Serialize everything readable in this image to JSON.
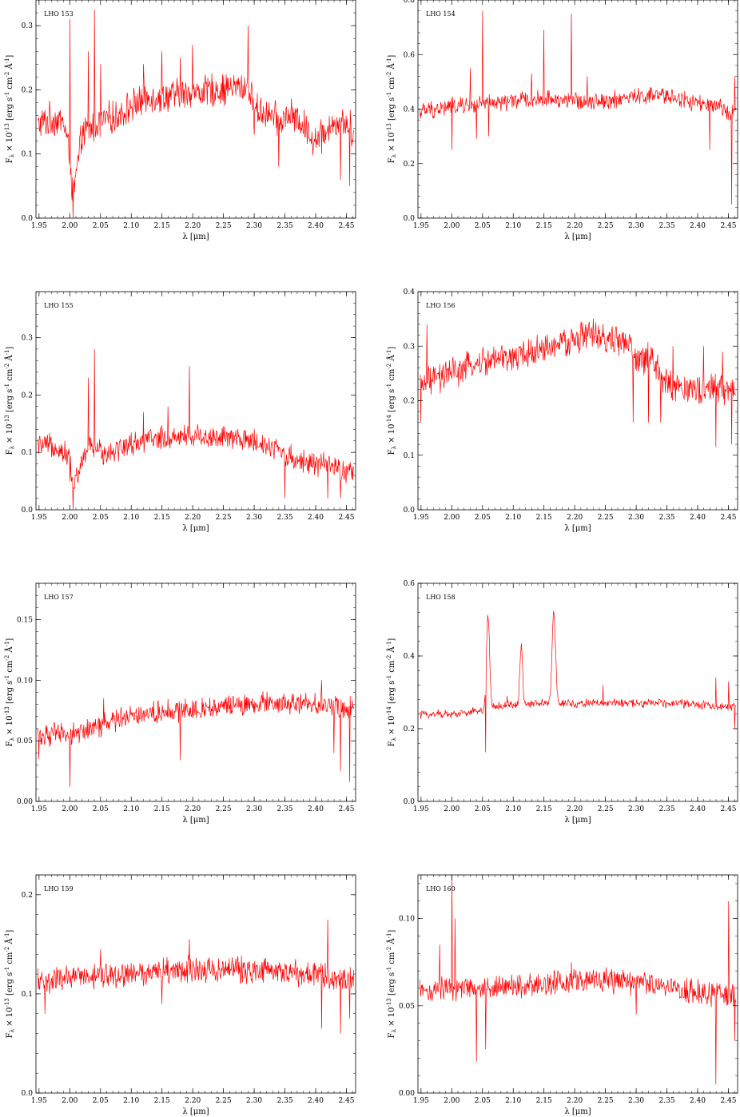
{
  "figure": {
    "line_color": "#ff0000",
    "axis_color": "#000000",
    "background": "#ffffff"
  },
  "chart_data": [
    {
      "type": "line",
      "panel_label": "LHO 153",
      "xlabel": "λ [μm]",
      "ylabel": "F_λ × 10^-13 [erg s^-1 cm^-2 Å^-1]",
      "y_exponent": "-13",
      "xlim": [
        1.945,
        2.465
      ],
      "ylim": [
        0.0,
        0.34
      ],
      "xticks": [
        "1.95",
        "2.00",
        "2.05",
        "2.10",
        "2.15",
        "2.20",
        "2.25",
        "2.30",
        "2.35",
        "2.40",
        "2.45"
      ],
      "yticks": [
        "0.0",
        "0.1",
        "0.2",
        "0.3"
      ],
      "ytick_values": [
        0.0,
        0.1,
        0.2,
        0.3
      ],
      "series": [
        {
          "x": [
            1.95,
            1.97,
            1.99,
            2.0,
            2.005,
            2.02,
            2.05,
            2.08,
            2.1,
            2.13,
            2.16,
            2.2,
            2.24,
            2.28,
            2.29,
            2.3,
            2.32,
            2.34,
            2.36,
            2.38,
            2.4,
            2.42,
            2.44,
            2.46
          ],
          "y": [
            0.145,
            0.155,
            0.15,
            0.1,
            0.03,
            0.13,
            0.15,
            0.16,
            0.175,
            0.19,
            0.19,
            0.195,
            0.2,
            0.205,
            0.205,
            0.17,
            0.165,
            0.15,
            0.16,
            0.145,
            0.12,
            0.145,
            0.15,
            0.14
          ],
          "noise": 0.022,
          "spikes": [
            [
              2.0,
              0.31
            ],
            [
              2.04,
              0.325
            ],
            [
              2.03,
              0.26
            ],
            [
              2.05,
              0.24
            ],
            [
              2.12,
              0.24
            ],
            [
              2.15,
              0.26
            ],
            [
              2.18,
              0.25
            ],
            [
              2.2,
              0.27
            ],
            [
              2.29,
              0.3
            ],
            [
              2.455,
              0.26
            ]
          ],
          "dips": [
            [
              2.005,
              0.0
            ],
            [
              2.3,
              0.13
            ],
            [
              2.34,
              0.08
            ],
            [
              2.41,
              0.1
            ],
            [
              2.44,
              0.06
            ],
            [
              2.455,
              0.05
            ]
          ]
        }
      ]
    },
    {
      "type": "line",
      "panel_label": "LHO 154",
      "xlabel": "λ [μm]",
      "ylabel": "F_λ × 10^-13 [erg s^-1 cm^-2 Å^-1]",
      "y_exponent": "-13",
      "xlim": [
        1.945,
        2.465
      ],
      "ylim": [
        0.0,
        0.8
      ],
      "xticks": [
        "1.95",
        "2.00",
        "2.05",
        "2.10",
        "2.15",
        "2.20",
        "2.25",
        "2.30",
        "2.35",
        "2.40",
        "2.45"
      ],
      "yticks": [
        "0.0",
        "0.2",
        "0.4",
        "0.6",
        "0.8"
      ],
      "ytick_values": [
        0.0,
        0.2,
        0.4,
        0.6,
        0.8
      ],
      "series": [
        {
          "x": [
            1.95,
            2.0,
            2.05,
            2.1,
            2.15,
            2.2,
            2.25,
            2.3,
            2.35,
            2.4,
            2.46
          ],
          "y": [
            0.39,
            0.41,
            0.415,
            0.43,
            0.44,
            0.43,
            0.43,
            0.445,
            0.45,
            0.42,
            0.39
          ],
          "noise": 0.028,
          "spikes": [
            [
              2.0,
              0.52
            ],
            [
              2.04,
              0.77
            ],
            [
              2.05,
              0.76
            ],
            [
              2.06,
              0.59
            ],
            [
              2.15,
              0.69
            ],
            [
              2.195,
              0.75
            ],
            [
              2.03,
              0.55
            ],
            [
              2.13,
              0.53
            ],
            [
              2.22,
              0.52
            ],
            [
              2.46,
              0.52
            ]
          ],
          "dips": [
            [
              2.0,
              0.25
            ],
            [
              2.04,
              0.29
            ],
            [
              2.455,
              0.05
            ],
            [
              2.42,
              0.25
            ],
            [
              2.06,
              0.3
            ]
          ]
        }
      ]
    },
    {
      "type": "line",
      "panel_label": "LHO 155",
      "xlabel": "λ [μm]",
      "ylabel": "F_λ × 10^-13 [erg s^-1 cm^-2 Å^-1]",
      "y_exponent": "-13",
      "xlim": [
        1.945,
        2.465
      ],
      "ylim": [
        0.0,
        0.38
      ],
      "xticks": [
        "1.95",
        "2.00",
        "2.05",
        "2.10",
        "2.15",
        "2.20",
        "2.25",
        "2.30",
        "2.35",
        "2.40",
        "2.45"
      ],
      "yticks": [
        "0.0",
        "0.1",
        "0.2",
        "0.3"
      ],
      "ytick_values": [
        0.0,
        0.1,
        0.2,
        0.3
      ],
      "series": [
        {
          "x": [
            1.95,
            1.98,
            2.0,
            2.005,
            2.03,
            2.06,
            2.1,
            2.15,
            2.2,
            2.25,
            2.3,
            2.33,
            2.36,
            2.4,
            2.44,
            2.46
          ],
          "y": [
            0.11,
            0.11,
            0.09,
            0.04,
            0.11,
            0.1,
            0.115,
            0.125,
            0.13,
            0.125,
            0.12,
            0.11,
            0.09,
            0.08,
            0.07,
            0.06
          ],
          "noise": 0.018,
          "spikes": [
            [
              2.0,
              0.38
            ],
            [
              2.04,
              0.28
            ],
            [
              2.03,
              0.23
            ],
            [
              2.195,
              0.25
            ],
            [
              2.12,
              0.17
            ],
            [
              2.16,
              0.18
            ]
          ],
          "dips": [
            [
              2.005,
              0.0
            ],
            [
              2.35,
              0.02
            ],
            [
              2.42,
              0.02
            ],
            [
              2.44,
              0.02
            ],
            [
              2.0,
              0.05
            ]
          ]
        }
      ]
    },
    {
      "type": "line",
      "panel_label": "LHO 156",
      "xlabel": "λ [μm]",
      "ylabel": "F_λ × 10^-14 [erg s^-1 cm^-2 Å^-1]",
      "y_exponent": "-14",
      "xlim": [
        1.945,
        2.465
      ],
      "ylim": [
        0.0,
        0.4
      ],
      "xticks": [
        "1.95",
        "2.00",
        "2.05",
        "2.10",
        "2.15",
        "2.20",
        "2.25",
        "2.30",
        "2.35",
        "2.40",
        "2.45"
      ],
      "yticks": [
        "0.0",
        "0.1",
        "0.2",
        "0.3",
        "0.4"
      ],
      "ytick_values": [
        0.0,
        0.1,
        0.2,
        0.3,
        0.4
      ],
      "series": [
        {
          "x": [
            1.95,
            2.0,
            2.05,
            2.1,
            2.15,
            2.2,
            2.22,
            2.25,
            2.28,
            2.29,
            2.3,
            2.32,
            2.35,
            2.4,
            2.46
          ],
          "y": [
            0.23,
            0.25,
            0.27,
            0.28,
            0.295,
            0.31,
            0.325,
            0.31,
            0.31,
            0.3,
            0.27,
            0.28,
            0.23,
            0.22,
            0.22
          ],
          "noise": 0.024,
          "spikes": [
            [
              1.96,
              0.34
            ],
            [
              2.21,
              0.345
            ],
            [
              2.24,
              0.33
            ],
            [
              2.36,
              0.3
            ],
            [
              2.41,
              0.3
            ],
            [
              2.44,
              0.29
            ]
          ],
          "dips": [
            [
              2.295,
              0.16
            ],
            [
              2.32,
              0.16
            ],
            [
              2.34,
              0.16
            ],
            [
              2.43,
              0.115
            ],
            [
              2.455,
              0.12
            ],
            [
              1.95,
              0.16
            ]
          ]
        }
      ]
    },
    {
      "type": "line",
      "panel_label": "LHO 157",
      "xlabel": "λ [μm]",
      "ylabel": "F_λ × 10^-13 [erg s^-1 cm^-2 Å^-1]",
      "y_exponent": "-13",
      "xlim": [
        1.945,
        2.465
      ],
      "ylim": [
        0.0,
        0.18
      ],
      "xticks": [
        "1.95",
        "2.00",
        "2.05",
        "2.10",
        "2.15",
        "2.20",
        "2.25",
        "2.30",
        "2.35",
        "2.40",
        "2.45"
      ],
      "yticks": [
        "0.00",
        "0.05",
        "0.10",
        "0.15"
      ],
      "ytick_values": [
        0.0,
        0.05,
        0.1,
        0.15
      ],
      "series": [
        {
          "x": [
            1.95,
            2.0,
            2.05,
            2.08,
            2.1,
            2.15,
            2.2,
            2.25,
            2.3,
            2.35,
            2.4,
            2.46
          ],
          "y": [
            0.055,
            0.055,
            0.062,
            0.068,
            0.072,
            0.074,
            0.076,
            0.078,
            0.08,
            0.081,
            0.08,
            0.078
          ],
          "noise": 0.008,
          "spikes": [
            [
              2.055,
              0.085
            ],
            [
              2.455,
              0.18
            ],
            [
              2.43,
              0.12
            ],
            [
              2.44,
              0.13
            ],
            [
              2.41,
              0.1
            ]
          ],
          "dips": [
            [
              2.0,
              0.012
            ],
            [
              2.18,
              0.034
            ],
            [
              2.455,
              0.016
            ],
            [
              2.44,
              0.025
            ],
            [
              2.43,
              0.04
            ],
            [
              1.95,
              0.035
            ]
          ]
        }
      ]
    },
    {
      "type": "line",
      "panel_label": "LHO 158",
      "xlabel": "λ [μm]",
      "ylabel": "F_λ × 10^-14 [erg s^-1 cm^-2 Å^-1]",
      "y_exponent": "-14",
      "xlim": [
        1.945,
        2.465
      ],
      "ylim": [
        0.0,
        0.6
      ],
      "xticks": [
        "1.95",
        "2.00",
        "2.05",
        "2.10",
        "2.15",
        "2.20",
        "2.25",
        "2.30",
        "2.35",
        "2.40",
        "2.45"
      ],
      "yticks": [
        "0.0",
        "0.2",
        "0.4",
        "0.6"
      ],
      "ytick_values": [
        0.0,
        0.2,
        0.4,
        0.6
      ],
      "series": [
        {
          "x": [
            1.95,
            2.0,
            2.05,
            2.06,
            2.1,
            2.15,
            2.2,
            2.25,
            2.3,
            2.35,
            2.4,
            2.46
          ],
          "y": [
            0.24,
            0.24,
            0.25,
            0.26,
            0.265,
            0.27,
            0.27,
            0.27,
            0.27,
            0.27,
            0.265,
            0.26
          ],
          "noise": 0.01,
          "peaks": [
            [
              2.059,
              0.51,
              0.0025
            ],
            [
              2.113,
              0.43,
              0.0022
            ],
            [
              2.166,
              0.52,
              0.0028
            ]
          ],
          "spikes": [
            [
              2.246,
              0.32
            ],
            [
              2.09,
              0.29
            ],
            [
              2.43,
              0.34
            ],
            [
              2.45,
              0.33
            ]
          ],
          "dips": [
            [
              2.055,
              0.135
            ],
            [
              2.46,
              0.2
            ]
          ]
        }
      ]
    },
    {
      "type": "line",
      "panel_label": "LHO 159",
      "xlabel": "λ [μm]",
      "ylabel": "F_λ × 10^-13 [erg s^-1 cm^-2 Å^-1]",
      "y_exponent": "-13",
      "xlim": [
        1.945,
        2.465
      ],
      "ylim": [
        0.0,
        0.22
      ],
      "xticks": [
        "1.95",
        "2.00",
        "2.05",
        "2.10",
        "2.15",
        "2.20",
        "2.25",
        "2.30",
        "2.35",
        "2.40",
        "2.45"
      ],
      "yticks": [
        "0.0",
        "0.1",
        "0.2"
      ],
      "ytick_values": [
        0.0,
        0.1,
        0.2
      ],
      "series": [
        {
          "x": [
            1.95,
            2.0,
            2.05,
            2.1,
            2.15,
            2.2,
            2.25,
            2.3,
            2.35,
            2.4,
            2.46
          ],
          "y": [
            0.112,
            0.115,
            0.118,
            0.12,
            0.123,
            0.125,
            0.125,
            0.124,
            0.122,
            0.118,
            0.115
          ],
          "noise": 0.011,
          "spikes": [
            [
              1.96,
              0.175
            ],
            [
              2.195,
              0.155
            ],
            [
              2.455,
              0.205
            ],
            [
              2.42,
              0.175
            ],
            [
              2.05,
              0.145
            ]
          ],
          "dips": [
            [
              2.15,
              0.09
            ],
            [
              2.41,
              0.065
            ],
            [
              2.44,
              0.06
            ],
            [
              2.455,
              0.075
            ],
            [
              1.96,
              0.08
            ]
          ]
        }
      ]
    },
    {
      "type": "line",
      "panel_label": "LHO 160",
      "xlabel": "λ [μm]",
      "ylabel": "F_λ × 10^-13 [erg s^-1 cm^-2 Å^-1]",
      "y_exponent": "-13",
      "xlim": [
        1.945,
        2.465
      ],
      "ylim": [
        0.0,
        0.125
      ],
      "xticks": [
        "1.95",
        "2.00",
        "2.05",
        "2.10",
        "2.15",
        "2.20",
        "2.25",
        "2.30",
        "2.35",
        "2.40",
        "2.45"
      ],
      "yticks": [
        "0.00",
        "0.05",
        "0.10"
      ],
      "ytick_values": [
        0.0,
        0.05,
        0.1
      ],
      "series": [
        {
          "x": [
            1.95,
            2.0,
            2.05,
            2.1,
            2.15,
            2.2,
            2.25,
            2.3,
            2.35,
            2.4,
            2.46
          ],
          "y": [
            0.058,
            0.06,
            0.06,
            0.061,
            0.063,
            0.064,
            0.065,
            0.063,
            0.062,
            0.058,
            0.055
          ],
          "noise": 0.006,
          "spikes": [
            [
              2.0,
              0.125
            ],
            [
              2.005,
              0.1
            ],
            [
              2.195,
              0.075
            ],
            [
              2.45,
              0.11
            ],
            [
              1.98,
              0.085
            ]
          ],
          "dips": [
            [
              2.04,
              0.018
            ],
            [
              2.055,
              0.025
            ],
            [
              2.43,
              0.005
            ],
            [
              2.46,
              0.03
            ],
            [
              2.3,
              0.045
            ]
          ]
        }
      ]
    }
  ]
}
